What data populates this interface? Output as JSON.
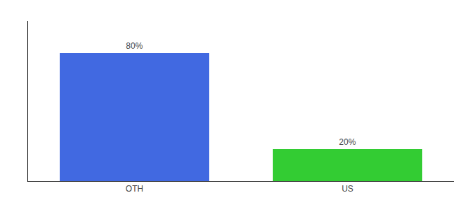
{
  "chart_data": {
    "type": "bar",
    "categories": [
      "OTH",
      "US"
    ],
    "values": [
      80,
      20
    ],
    "value_labels": [
      "80%",
      "20%"
    ],
    "colors": [
      "#4169E1",
      "#33CC33"
    ],
    "ylim": [
      0,
      100
    ],
    "grid": false,
    "data_labels": true,
    "tick_labels": "x"
  }
}
